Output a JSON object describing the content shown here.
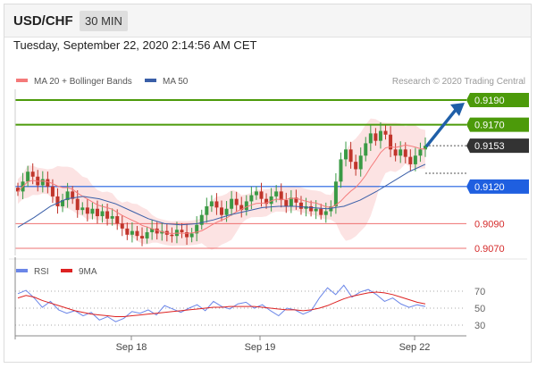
{
  "header": {
    "symbol": "USD/CHF",
    "timeframe": "30 MIN"
  },
  "datetime": "Tuesday, September 22, 2020 2:14:56 AM CET",
  "colors": {
    "ma20": "#f47a7a",
    "ma50": "#3a5fa8",
    "band_fill": "#fbdada",
    "resistance": "#4c9a0a",
    "support": "#1f5fe0",
    "support_thin": "#ee7070",
    "current": "#333333",
    "arrow": "#1f5fa8",
    "rsi": "#6b86e8",
    "rsi_ma": "#dd2222",
    "candle_up": "#3a9a45",
    "candle_down": "#c0352b"
  },
  "legend": {
    "main": [
      {
        "label": "MA 20 + Bollinger Bands",
        "color": "#f47a7a"
      },
      {
        "label": "MA 50",
        "color": "#3a5fa8"
      }
    ],
    "rsi": [
      {
        "label": "RSI",
        "color": "#6b86e8"
      },
      {
        "label": "9MA",
        "color": "#dd2222"
      }
    ]
  },
  "credit": "Research © 2020 Trading Central",
  "chart_data": {
    "type": "candlestick",
    "instrument": "USD/CHF",
    "interval": "30 MIN",
    "x_ticks": [
      "Sep 18",
      "Sep 19",
      "Sep 22"
    ],
    "price_range": [
      0.9062,
      0.9205
    ],
    "levels": [
      {
        "price": 0.919,
        "label": "0.9190",
        "kind": "resistance"
      },
      {
        "price": 0.917,
        "label": "0.9170",
        "kind": "resistance"
      },
      {
        "price": 0.9153,
        "label": "0.9153",
        "kind": "current"
      },
      {
        "price": 0.912,
        "label": "0.9120",
        "kind": "pivot"
      },
      {
        "price": 0.909,
        "label": "0.9090",
        "kind": "support"
      },
      {
        "price": 0.907,
        "label": "0.9070",
        "kind": "support"
      }
    ],
    "close_series": [
      0.9116,
      0.9124,
      0.9132,
      0.9128,
      0.9121,
      0.9126,
      0.912,
      0.9112,
      0.9104,
      0.9109,
      0.9116,
      0.911,
      0.9101,
      0.9103,
      0.9098,
      0.9102,
      0.9096,
      0.91,
      0.9094,
      0.9096,
      0.909,
      0.9086,
      0.9081,
      0.9084,
      0.908,
      0.9078,
      0.9083,
      0.9086,
      0.9082,
      0.9084,
      0.9081,
      0.908,
      0.9085,
      0.9083,
      0.9079,
      0.9082,
      0.9089,
      0.9097,
      0.9104,
      0.9108,
      0.9103,
      0.9097,
      0.9102,
      0.911,
      0.9105,
      0.9101,
      0.9108,
      0.9113,
      0.9116,
      0.911,
      0.9106,
      0.9112,
      0.9116,
      0.9109,
      0.9104,
      0.9111,
      0.9107,
      0.9102,
      0.9104,
      0.91,
      0.9102,
      0.9097,
      0.91,
      0.9104,
      0.9124,
      0.9142,
      0.915,
      0.914,
      0.9134,
      0.9145,
      0.9155,
      0.9163,
      0.9157,
      0.9165,
      0.9162,
      0.915,
      0.9145,
      0.915,
      0.9144,
      0.9138,
      0.9145,
      0.915,
      0.9153
    ],
    "ma50_series": [
      0.9087,
      0.9095,
      0.9104,
      0.911,
      0.9112,
      0.911,
      0.9106,
      0.91,
      0.9094,
      0.909,
      0.9089,
      0.909,
      0.9093,
      0.9097,
      0.91,
      0.9103,
      0.9104,
      0.9104,
      0.9103,
      0.9102,
      0.9104,
      0.9109,
      0.9116,
      0.9124,
      0.9132,
      0.9138
    ],
    "rsi": {
      "levels": [
        70,
        50,
        30
      ],
      "values": [
        67,
        71,
        62,
        51,
        58,
        48,
        44,
        47,
        41,
        45,
        36,
        40,
        34,
        38,
        46,
        44,
        48,
        42,
        53,
        49,
        45,
        50,
        54,
        47,
        58,
        52,
        49,
        55,
        57,
        50,
        54,
        47,
        41,
        50,
        48,
        43,
        47,
        62,
        74,
        66,
        77,
        63,
        69,
        72,
        66,
        58,
        62,
        55,
        51,
        54,
        52
      ],
      "ma9": [
        62,
        65,
        63,
        59,
        56,
        53,
        50,
        47,
        45,
        43,
        42,
        41,
        40,
        40,
        41,
        42,
        43,
        44,
        45,
        46,
        47,
        48,
        49,
        50,
        51,
        51,
        52,
        52,
        52,
        52,
        51,
        50,
        49,
        48,
        48,
        47,
        48,
        50,
        53,
        57,
        61,
        64,
        66,
        68,
        69,
        68,
        66,
        63,
        60,
        57,
        55
      ]
    }
  }
}
